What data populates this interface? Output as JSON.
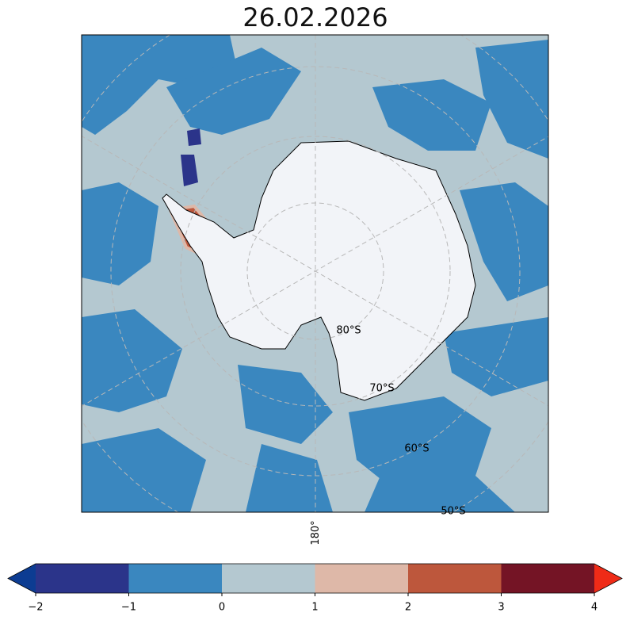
{
  "title": "26.02.2026",
  "latitude_labels": [
    "80°S",
    "70°S",
    "60°S",
    "50°S"
  ],
  "longitude_label": "180°",
  "colorbar": {
    "vlim": [
      -2,
      4
    ],
    "ticks": [
      {
        "value": -2,
        "label": "−2"
      },
      {
        "value": -1,
        "label": "−1"
      },
      0,
      1,
      2,
      3,
      4
    ],
    "colors": [
      "#2b348a",
      "#3a87bf",
      "#b4c8d0",
      "#deb8a8",
      "#bd573c",
      "#741425"
    ],
    "under_color": "#0c3c92",
    "over_color": "#ef2b17"
  }
}
